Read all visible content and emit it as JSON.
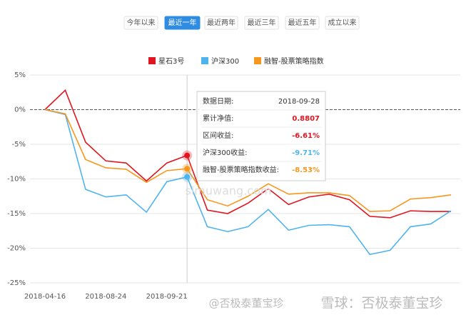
{
  "tabs": [
    "今年以来",
    "最近一年",
    "最近两年",
    "最近三年",
    "最近五年",
    "成立以来"
  ],
  "active_tab": 1,
  "chart_data": {
    "type": "line",
    "categories": [
      "2018-04-16",
      null,
      null,
      "2018-08-24",
      null,
      null,
      "2018-09-21",
      null,
      null,
      null,
      null,
      null,
      null,
      null,
      null,
      null,
      null,
      null,
      null,
      null,
      null
    ],
    "series": [
      {
        "name": "星石3号",
        "color": "#e0151f",
        "values": [
          0,
          2.8,
          -4.7,
          -7.4,
          -7.7,
          -10.3,
          -7.7,
          -6.61,
          -14.5,
          -15.0,
          -13.5,
          -11.4,
          -13.7,
          -12.6,
          -12.2,
          -13.0,
          -15.4,
          -15.6,
          -14.6,
          -14.7,
          -14.7
        ]
      },
      {
        "name": "沪深300",
        "color": "#4fb4ee",
        "values": [
          0,
          -0.7,
          -11.5,
          -12.6,
          -12.3,
          -14.8,
          -10.4,
          -9.71,
          -16.9,
          -17.6,
          -16.9,
          -14.4,
          -17.4,
          -16.7,
          -16.6,
          -16.9,
          -20.9,
          -20.3,
          -16.9,
          -16.5,
          -14.6
        ]
      },
      {
        "name": "融智-股票策略指数",
        "color": "#f7971d",
        "values": [
          0,
          -0.6,
          -7.2,
          -8.4,
          -8.6,
          -10.5,
          -8.8,
          -8.53,
          -13.0,
          -13.9,
          -12.5,
          -10.7,
          -12.2,
          -12.0,
          -12.0,
          -12.4,
          -14.7,
          -14.6,
          -12.9,
          -12.7,
          -12.3
        ]
      }
    ],
    "ylim": [
      -25,
      5
    ],
    "yticks": [
      {
        "value": -25,
        "label": "-25%"
      },
      {
        "value": -20,
        "label": "-20%"
      },
      {
        "value": -15,
        "label": "-15%"
      },
      {
        "value": -10,
        "label": "-10%"
      },
      {
        "value": -5,
        "label": "-5%"
      },
      {
        "value": 0,
        "label": "0%"
      },
      {
        "value": 5,
        "label": "5%"
      }
    ],
    "grid": true,
    "tooltip": {
      "index": 7,
      "rows": [
        [
          "数据日期:",
          "2018-09-28"
        ],
        [
          "累计净值:",
          "0.8807"
        ],
        [
          "区间收益:",
          "-6.61%"
        ],
        [
          "沪深300收益:",
          "-9.71%"
        ],
        [
          "融智-股票策略指数收益:",
          "-8.53%"
        ]
      ]
    }
  },
  "watermarks": [
    "simuwang.com",
    "@否极泰董宝珍",
    "雪球：否极泰董宝珍"
  ]
}
